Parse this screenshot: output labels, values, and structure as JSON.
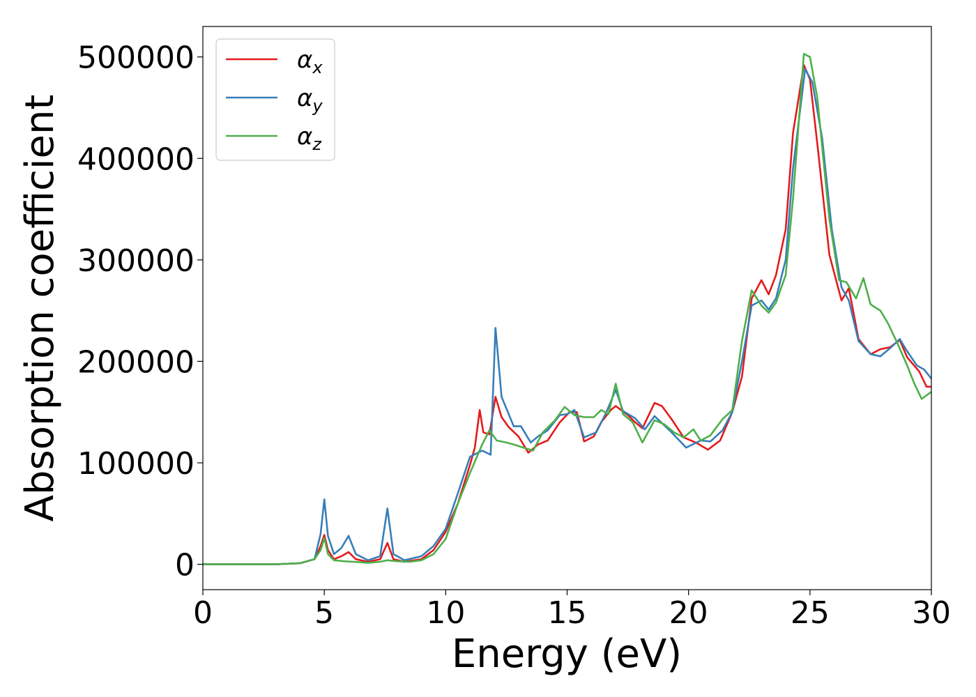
{
  "chart_data": {
    "type": "line",
    "xlabel": "Energy (eV)",
    "ylabel": "Absorption coefficient",
    "xlim": [
      0,
      30
    ],
    "ylim": [
      -25000,
      530000
    ],
    "x_ticks": [
      0,
      5,
      10,
      15,
      20,
      25,
      30
    ],
    "x_tick_labels": [
      "0",
      "5",
      "10",
      "15",
      "20",
      "25",
      "30"
    ],
    "y_ticks": [
      0,
      100000,
      200000,
      300000,
      400000,
      500000
    ],
    "y_tick_labels": [
      "0",
      "100000",
      "200000",
      "300000",
      "400000",
      "500000"
    ],
    "grid": false,
    "legend_position": "top-left",
    "series": [
      {
        "name": "α",
        "subscript": "x",
        "color": "#e41a1c",
        "points": [
          [
            0,
            0
          ],
          [
            3,
            0
          ],
          [
            4,
            1000
          ],
          [
            4.6,
            5000
          ],
          [
            4.85,
            18000
          ],
          [
            5.0,
            29000
          ],
          [
            5.15,
            14000
          ],
          [
            5.4,
            5000
          ],
          [
            5.7,
            8000
          ],
          [
            6.0,
            12000
          ],
          [
            6.3,
            5000
          ],
          [
            6.8,
            2500
          ],
          [
            7.3,
            5000
          ],
          [
            7.6,
            21000
          ],
          [
            7.85,
            5000
          ],
          [
            8.3,
            2500
          ],
          [
            9.0,
            5000
          ],
          [
            9.5,
            14000
          ],
          [
            10.0,
            32000
          ],
          [
            10.5,
            60000
          ],
          [
            11.0,
            98000
          ],
          [
            11.2,
            115000
          ],
          [
            11.4,
            152000
          ],
          [
            11.55,
            130000
          ],
          [
            11.8,
            128000
          ],
          [
            12.05,
            165000
          ],
          [
            12.3,
            145000
          ],
          [
            12.6,
            135000
          ],
          [
            13.0,
            126000
          ],
          [
            13.4,
            110000
          ],
          [
            13.8,
            118000
          ],
          [
            14.2,
            122000
          ],
          [
            14.7,
            140000
          ],
          [
            15.1,
            150000
          ],
          [
            15.4,
            150000
          ],
          [
            15.7,
            121000
          ],
          [
            16.1,
            126000
          ],
          [
            16.4,
            140000
          ],
          [
            16.8,
            152000
          ],
          [
            17.0,
            156000
          ],
          [
            17.5,
            147000
          ],
          [
            17.8,
            140000
          ],
          [
            18.1,
            134000
          ],
          [
            18.6,
            159000
          ],
          [
            18.9,
            156000
          ],
          [
            19.3,
            143000
          ],
          [
            19.8,
            125000
          ],
          [
            20.3,
            120000
          ],
          [
            20.8,
            113000
          ],
          [
            21.3,
            122000
          ],
          [
            21.8,
            150000
          ],
          [
            22.2,
            185000
          ],
          [
            22.6,
            262000
          ],
          [
            23.0,
            280000
          ],
          [
            23.3,
            266000
          ],
          [
            23.6,
            285000
          ],
          [
            24.0,
            330000
          ],
          [
            24.3,
            425000
          ],
          [
            24.75,
            492000
          ],
          [
            25.0,
            478000
          ],
          [
            25.3,
            415000
          ],
          [
            25.8,
            305000
          ],
          [
            26.3,
            260000
          ],
          [
            26.6,
            272000
          ],
          [
            27.0,
            222000
          ],
          [
            27.5,
            207000
          ],
          [
            27.9,
            212000
          ],
          [
            28.3,
            214000
          ],
          [
            28.7,
            221000
          ],
          [
            29.0,
            204000
          ],
          [
            29.5,
            190000
          ],
          [
            29.8,
            175000
          ],
          [
            30,
            175000
          ]
        ]
      },
      {
        "name": "α",
        "subscript": "y",
        "color": "#377eb8",
        "points": [
          [
            0,
            0
          ],
          [
            3,
            0
          ],
          [
            4,
            1000
          ],
          [
            4.6,
            5000
          ],
          [
            4.85,
            30000
          ],
          [
            5.0,
            64000
          ],
          [
            5.15,
            28000
          ],
          [
            5.4,
            10000
          ],
          [
            5.7,
            16000
          ],
          [
            6.0,
            28000
          ],
          [
            6.3,
            10000
          ],
          [
            6.8,
            4000
          ],
          [
            7.3,
            8000
          ],
          [
            7.6,
            55000
          ],
          [
            7.85,
            10000
          ],
          [
            8.3,
            4000
          ],
          [
            9.0,
            8000
          ],
          [
            9.5,
            18000
          ],
          [
            10.0,
            35000
          ],
          [
            10.5,
            70000
          ],
          [
            11.0,
            106000
          ],
          [
            11.5,
            112000
          ],
          [
            11.85,
            108000
          ],
          [
            12.05,
            233000
          ],
          [
            12.3,
            165000
          ],
          [
            12.8,
            136000
          ],
          [
            13.1,
            136000
          ],
          [
            13.5,
            120000
          ],
          [
            13.8,
            126000
          ],
          [
            14.2,
            132000
          ],
          [
            14.7,
            147000
          ],
          [
            15.0,
            148000
          ],
          [
            15.3,
            152000
          ],
          [
            15.7,
            125000
          ],
          [
            16.2,
            130000
          ],
          [
            16.6,
            149000
          ],
          [
            17.0,
            172000
          ],
          [
            17.3,
            151000
          ],
          [
            17.8,
            144000
          ],
          [
            18.2,
            133000
          ],
          [
            18.6,
            146000
          ],
          [
            19.0,
            137000
          ],
          [
            19.3,
            130000
          ],
          [
            19.9,
            115000
          ],
          [
            20.5,
            122000
          ],
          [
            20.9,
            121000
          ],
          [
            21.4,
            132000
          ],
          [
            21.8,
            150000
          ],
          [
            22.2,
            200000
          ],
          [
            22.6,
            255000
          ],
          [
            23.0,
            260000
          ],
          [
            23.3,
            251000
          ],
          [
            23.6,
            262000
          ],
          [
            24.0,
            300000
          ],
          [
            24.3,
            390000
          ],
          [
            24.8,
            488000
          ],
          [
            25.1,
            475000
          ],
          [
            25.5,
            420000
          ],
          [
            25.9,
            330000
          ],
          [
            26.3,
            273000
          ],
          [
            26.6,
            260000
          ],
          [
            27.0,
            220000
          ],
          [
            27.5,
            207000
          ],
          [
            27.9,
            205000
          ],
          [
            28.3,
            213000
          ],
          [
            28.7,
            222000
          ],
          [
            29.0,
            210000
          ],
          [
            29.4,
            196000
          ],
          [
            29.7,
            192000
          ],
          [
            30,
            183000
          ]
        ]
      },
      {
        "name": "α",
        "subscript": "z",
        "color": "#4daf4a",
        "points": [
          [
            0,
            0
          ],
          [
            3,
            0
          ],
          [
            4,
            1000
          ],
          [
            4.6,
            5000
          ],
          [
            4.85,
            14000
          ],
          [
            5.0,
            26000
          ],
          [
            5.15,
            10000
          ],
          [
            5.4,
            4000
          ],
          [
            5.8,
            3000
          ],
          [
            6.2,
            2500
          ],
          [
            6.8,
            1500
          ],
          [
            7.3,
            2500
          ],
          [
            7.6,
            4000
          ],
          [
            8.0,
            3000
          ],
          [
            8.5,
            2500
          ],
          [
            9.0,
            4000
          ],
          [
            9.5,
            10000
          ],
          [
            10.0,
            25000
          ],
          [
            10.5,
            60000
          ],
          [
            11.0,
            90000
          ],
          [
            11.5,
            118000
          ],
          [
            11.8,
            132000
          ],
          [
            12.1,
            122000
          ],
          [
            12.5,
            120000
          ],
          [
            12.8,
            118000
          ],
          [
            13.2,
            115000
          ],
          [
            13.6,
            112000
          ],
          [
            14.0,
            130000
          ],
          [
            14.5,
            142000
          ],
          [
            14.9,
            155000
          ],
          [
            15.3,
            147000
          ],
          [
            15.7,
            145000
          ],
          [
            16.1,
            145000
          ],
          [
            16.4,
            152000
          ],
          [
            16.7,
            148000
          ],
          [
            17.0,
            178000
          ],
          [
            17.3,
            148000
          ],
          [
            17.7,
            140000
          ],
          [
            18.1,
            120000
          ],
          [
            18.6,
            142000
          ],
          [
            19.0,
            138000
          ],
          [
            19.4,
            130000
          ],
          [
            19.8,
            125000
          ],
          [
            20.2,
            133000
          ],
          [
            20.5,
            122000
          ],
          [
            20.9,
            127000
          ],
          [
            21.4,
            143000
          ],
          [
            21.8,
            152000
          ],
          [
            22.2,
            220000
          ],
          [
            22.6,
            270000
          ],
          [
            23.0,
            255000
          ],
          [
            23.3,
            248000
          ],
          [
            23.6,
            258000
          ],
          [
            24.0,
            285000
          ],
          [
            24.3,
            360000
          ],
          [
            24.75,
            503000
          ],
          [
            25.0,
            500000
          ],
          [
            25.3,
            460000
          ],
          [
            25.8,
            340000
          ],
          [
            26.2,
            280000
          ],
          [
            26.5,
            278000
          ],
          [
            26.9,
            262000
          ],
          [
            27.2,
            282000
          ],
          [
            27.5,
            256000
          ],
          [
            27.9,
            250000
          ],
          [
            28.2,
            238000
          ],
          [
            28.6,
            218000
          ],
          [
            29.0,
            196000
          ],
          [
            29.3,
            178000
          ],
          [
            29.6,
            163000
          ],
          [
            30,
            170000
          ]
        ]
      }
    ]
  }
}
